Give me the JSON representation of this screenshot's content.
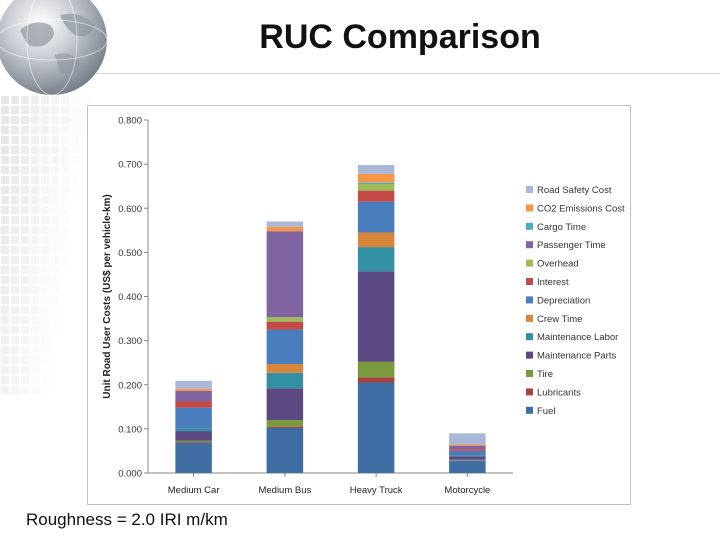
{
  "slide": {
    "title": "RUC Comparison",
    "footnote": "Roughness = 2.0 IRI m/km"
  },
  "chart_data": {
    "type": "bar",
    "stacked": true,
    "ylabel": "Unit Road User Costs (US$ per vehicle-km)",
    "xlabel": "",
    "ylim": [
      0,
      0.8
    ],
    "yticks": [
      "0.000",
      "0.100",
      "0.200",
      "0.300",
      "0.400",
      "0.500",
      "0.600",
      "0.700",
      "0.800"
    ],
    "categories": [
      "Medium Car",
      "Medium Bus",
      "Heavy Truck",
      "Motorcycle"
    ],
    "grid": false,
    "legend_position": "right",
    "series": [
      {
        "name": "Fuel",
        "color": "#3E6EA3",
        "values": [
          0.068,
          0.102,
          0.205,
          0.028
        ]
      },
      {
        "name": "Lubricants",
        "color": "#A6413F",
        "values": [
          0.002,
          0.003,
          0.012,
          0.001
        ]
      },
      {
        "name": "Tire",
        "color": "#7A9A3E",
        "values": [
          0.003,
          0.015,
          0.035,
          0.001
        ]
      },
      {
        "name": "Maintenance Parts",
        "color": "#5B4A82",
        "values": [
          0.022,
          0.072,
          0.205,
          0.008
        ]
      },
      {
        "name": "Maintenance Labor",
        "color": "#3390A3",
        "values": [
          0.005,
          0.035,
          0.055,
          0.002
        ]
      },
      {
        "name": "Crew Time",
        "color": "#D7853A",
        "values": [
          0.0,
          0.02,
          0.033,
          0.0
        ]
      },
      {
        "name": "Depreciation",
        "color": "#4A7DBE",
        "values": [
          0.048,
          0.078,
          0.07,
          0.01
        ]
      },
      {
        "name": "Interest",
        "color": "#C34A47",
        "values": [
          0.014,
          0.018,
          0.025,
          0.004
        ]
      },
      {
        "name": "Overhead",
        "color": "#9BBB59",
        "values": [
          0.0,
          0.01,
          0.015,
          0.0
        ]
      },
      {
        "name": "Passenger Time",
        "color": "#8064A2",
        "values": [
          0.024,
          0.195,
          0.0,
          0.008
        ]
      },
      {
        "name": "Cargo Time",
        "color": "#4BACC6",
        "values": [
          0.0,
          0.0,
          0.003,
          0.0
        ]
      },
      {
        "name": "CO2 Emissions Cost",
        "color": "#F79646",
        "values": [
          0.005,
          0.01,
          0.02,
          0.003
        ]
      },
      {
        "name": "Road Safety Cost",
        "color": "#A9B8D8",
        "values": [
          0.018,
          0.012,
          0.02,
          0.025
        ]
      }
    ]
  },
  "icons": {
    "globe": "globe-icon"
  }
}
